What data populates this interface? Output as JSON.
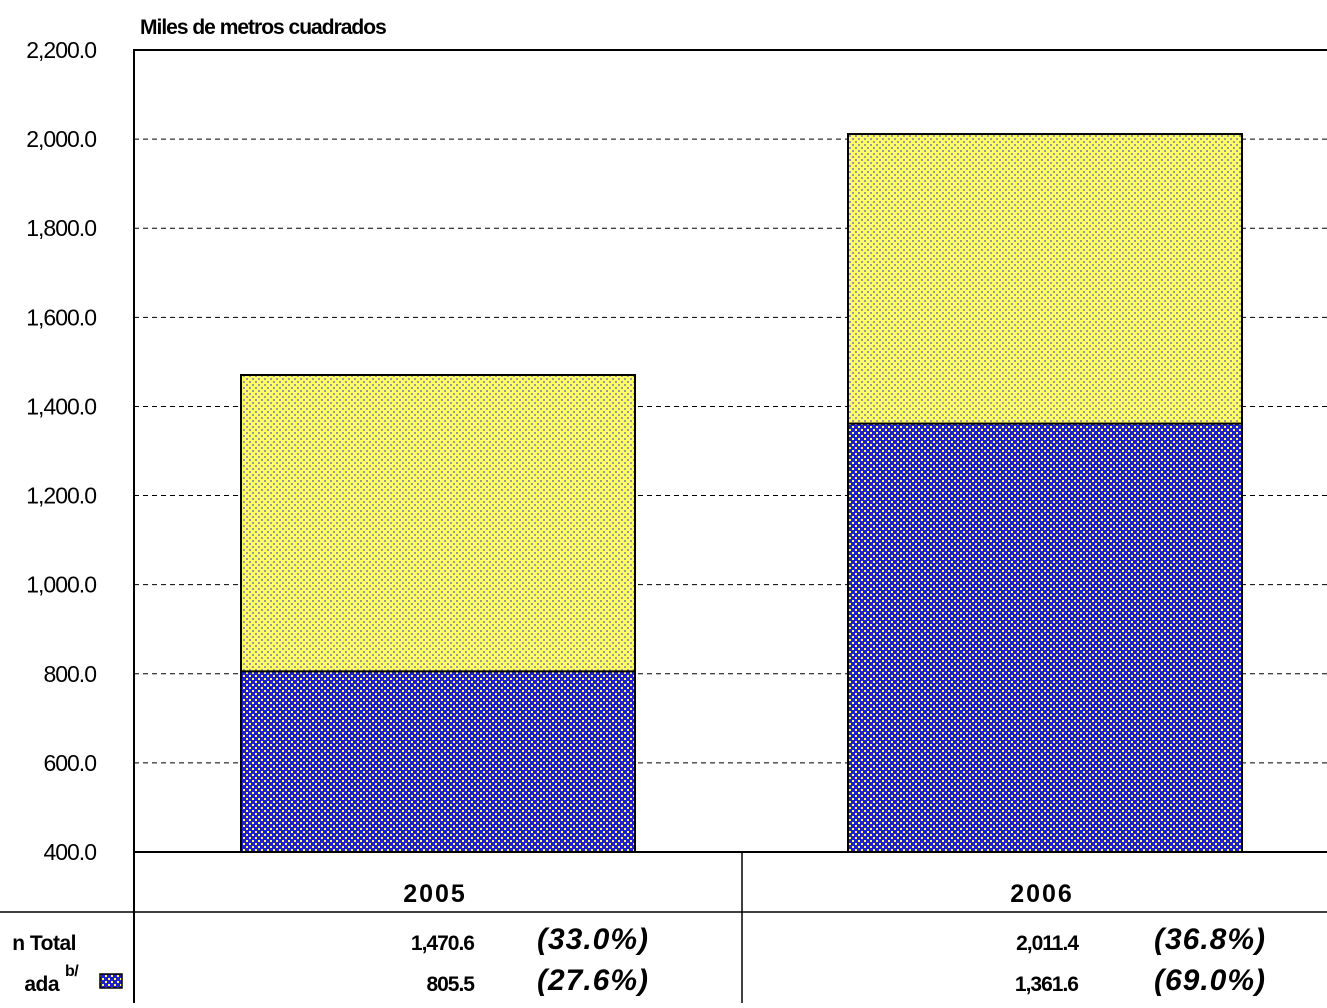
{
  "chart_data": {
    "type": "bar",
    "stacked": false,
    "overlapped": true,
    "ylabel": "Miles de metros cuadrados",
    "ylim": [
      400,
      2200
    ],
    "yticks": [
      "400.0",
      "600.0",
      "800.0",
      "1,000.0",
      "1,200.0",
      "1,400.0",
      "1,600.0",
      "1,800.0",
      "2,000.0",
      "2,200.0"
    ],
    "grid": true,
    "categories": [
      "2005",
      "2006"
    ],
    "series": [
      {
        "name": "n Total",
        "color": "#ffff66",
        "dot_color": "#999999",
        "values": [
          1470.6,
          2011.4
        ],
        "value_labels": [
          "1,470.6",
          "2,011.4"
        ],
        "pct_labels": [
          "(33.0%)",
          "(36.8%)"
        ]
      },
      {
        "name": "ada",
        "superscript": "b/",
        "color": "#1f1fcc",
        "dot_color": "#ffff66",
        "values": [
          805.5,
          1361.6
        ],
        "value_labels": [
          "805.5",
          "1,361.6"
        ],
        "pct_labels": [
          "(27.6%)",
          "(69.0%)"
        ]
      }
    ]
  }
}
